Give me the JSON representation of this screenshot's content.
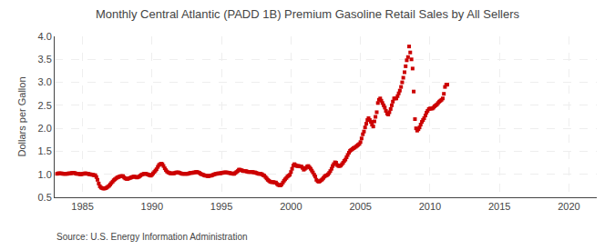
{
  "chart_data": {
    "type": "scatter",
    "title": "Monthly Central Atlantic (PADD 1B) Premium Gasoline Retail Sales by All Sellers",
    "ylabel": "Dollars per Gallon",
    "source": "Source: U.S. Energy Information Administration",
    "color": "#cc0000",
    "marker": "square",
    "grid": true,
    "xlim": [
      1983,
      2022
    ],
    "ylim": [
      0.5,
      4.0
    ],
    "xticks": [
      1985,
      1990,
      1995,
      2000,
      2005,
      2010,
      2015,
      2020
    ],
    "yticks": [
      0.5,
      {
        "value": 1.0,
        "label": "1.0"
      },
      1.5,
      {
        "value": 2.0,
        "label": "2.0"
      },
      2.5,
      {
        "value": 3.0,
        "label": "3.0"
      },
      3.5,
      {
        "value": 4.0,
        "label": "4.0"
      }
    ],
    "x": [
      1983.17,
      1983.25,
      1983.33,
      1983.42,
      1983.5,
      1983.58,
      1983.67,
      1983.75,
      1983.83,
      1983.92,
      1984.0,
      1984.08,
      1984.17,
      1984.25,
      1984.33,
      1984.42,
      1984.5,
      1984.58,
      1984.67,
      1984.75,
      1984.83,
      1984.92,
      1985.0,
      1985.08,
      1985.17,
      1985.25,
      1985.33,
      1985.42,
      1985.5,
      1985.58,
      1985.67,
      1985.75,
      1985.83,
      1985.92,
      1986.0,
      1986.08,
      1986.17,
      1986.25,
      1986.33,
      1986.42,
      1986.5,
      1986.58,
      1986.67,
      1986.75,
      1986.83,
      1986.92,
      1987.0,
      1987.08,
      1987.17,
      1987.25,
      1987.33,
      1987.42,
      1987.5,
      1987.58,
      1987.67,
      1987.75,
      1987.83,
      1987.92,
      1988.0,
      1988.08,
      1988.17,
      1988.25,
      1988.33,
      1988.42,
      1988.5,
      1988.58,
      1988.67,
      1988.75,
      1988.83,
      1988.92,
      1989.0,
      1989.08,
      1989.17,
      1989.25,
      1989.33,
      1989.42,
      1989.5,
      1989.58,
      1989.67,
      1989.75,
      1989.83,
      1989.92,
      1990.0,
      1990.08,
      1990.17,
      1990.25,
      1990.33,
      1990.42,
      1990.5,
      1990.58,
      1990.67,
      1990.75,
      1990.83,
      1990.92,
      1991.0,
      1991.08,
      1991.17,
      1991.25,
      1991.33,
      1991.42,
      1991.5,
      1991.58,
      1991.67,
      1991.75,
      1991.83,
      1991.92,
      1992.0,
      1992.08,
      1992.17,
      1992.25,
      1992.33,
      1992.42,
      1992.5,
      1992.58,
      1992.67,
      1992.75,
      1992.83,
      1992.92,
      1993.0,
      1993.08,
      1993.17,
      1993.25,
      1993.33,
      1993.42,
      1993.5,
      1993.58,
      1993.67,
      1993.75,
      1993.83,
      1993.92,
      1994.0,
      1994.08,
      1994.17,
      1994.25,
      1994.33,
      1994.42,
      1994.5,
      1994.58,
      1994.67,
      1994.75,
      1994.83,
      1994.92,
      1995.0,
      1995.08,
      1995.17,
      1995.25,
      1995.33,
      1995.42,
      1995.5,
      1995.58,
      1995.67,
      1995.75,
      1995.83,
      1995.92,
      1996.0,
      1996.08,
      1996.17,
      1996.25,
      1996.33,
      1996.42,
      1996.5,
      1996.58,
      1996.67,
      1996.75,
      1996.83,
      1996.92,
      1997.0,
      1997.08,
      1997.17,
      1997.25,
      1997.33,
      1997.42,
      1997.5,
      1997.58,
      1997.67,
      1997.75,
      1997.83,
      1997.92,
      1998.0,
      1998.08,
      1998.17,
      1998.25,
      1998.33,
      1998.42,
      1998.5,
      1998.58,
      1998.67,
      1998.75,
      1998.83,
      1998.92,
      1999.0,
      1999.08,
      1999.17,
      1999.25,
      1999.33,
      1999.42,
      1999.5,
      1999.58,
      1999.67,
      1999.75,
      1999.83,
      1999.92,
      2000.0,
      2000.08,
      2000.17,
      2000.25,
      2000.33,
      2000.42,
      2000.5,
      2000.58,
      2000.67,
      2000.75,
      2000.83,
      2000.92,
      2001.0,
      2001.08,
      2001.17,
      2001.25,
      2001.33,
      2001.42,
      2001.5,
      2001.58,
      2001.67,
      2001.75,
      2001.83,
      2001.92,
      2002.0,
      2002.08,
      2002.17,
      2002.25,
      2002.33,
      2002.42,
      2002.5,
      2002.58,
      2002.67,
      2002.75,
      2002.83,
      2002.92,
      2003.0,
      2003.08,
      2003.17,
      2003.25,
      2003.33,
      2003.42,
      2003.5,
      2003.58,
      2003.67,
      2003.75,
      2003.83,
      2003.92,
      2004.0,
      2004.08,
      2004.17,
      2004.25,
      2004.33,
      2004.42,
      2004.5,
      2004.58,
      2004.67,
      2004.75,
      2004.83,
      2004.92,
      2005.0,
      2005.08,
      2005.17,
      2005.25,
      2005.33,
      2005.42,
      2005.5,
      2005.58,
      2005.67,
      2005.75,
      2005.83,
      2005.92,
      2006.0,
      2006.08,
      2006.17,
      2006.25,
      2006.33,
      2006.42,
      2006.5,
      2006.58,
      2006.67,
      2006.75,
      2006.83,
      2006.92,
      2007.0,
      2007.08,
      2007.17,
      2007.25,
      2007.33,
      2007.42,
      2007.5,
      2007.58,
      2007.67,
      2007.75,
      2007.83,
      2007.92,
      2008.0,
      2008.08,
      2008.17,
      2008.25,
      2008.33,
      2008.42,
      2008.5,
      2008.58,
      2008.67,
      2008.75,
      2008.83,
      2008.92,
      2009.0,
      2009.08,
      2009.17,
      2009.25,
      2009.33,
      2009.42,
      2009.5,
      2009.58,
      2009.67,
      2009.75,
      2009.83,
      2009.92,
      2010.0,
      2010.08,
      2010.17,
      2010.25,
      2010.33,
      2010.42,
      2010.5,
      2010.58,
      2010.67,
      2010.75,
      2010.83,
      2010.92,
      2011.0,
      2011.08,
      2011.17,
      2011.25
    ],
    "values": [
      1.01,
      1.02,
      1.02,
      1.02,
      1.02,
      1.01,
      1.01,
      1.01,
      1.01,
      1.01,
      1.02,
      1.02,
      1.02,
      1.03,
      1.03,
      1.03,
      1.02,
      1.01,
      1.01,
      1.01,
      1.0,
      1.0,
      1.01,
      1.01,
      1.02,
      1.02,
      1.01,
      1.01,
      1.0,
      1.0,
      0.99,
      0.99,
      0.98,
      0.98,
      0.94,
      0.88,
      0.8,
      0.74,
      0.71,
      0.7,
      0.69,
      0.69,
      0.7,
      0.71,
      0.73,
      0.75,
      0.78,
      0.81,
      0.84,
      0.87,
      0.89,
      0.91,
      0.93,
      0.94,
      0.95,
      0.96,
      0.96,
      0.96,
      0.93,
      0.91,
      0.9,
      0.9,
      0.91,
      0.92,
      0.93,
      0.94,
      0.95,
      0.95,
      0.94,
      0.93,
      0.94,
      0.95,
      0.97,
      0.99,
      1.0,
      1.01,
      1.01,
      1.01,
      1.0,
      0.99,
      0.98,
      0.97,
      0.99,
      1.02,
      1.05,
      1.08,
      1.11,
      1.16,
      1.2,
      1.22,
      1.23,
      1.22,
      1.18,
      1.13,
      1.09,
      1.06,
      1.04,
      1.03,
      1.02,
      1.02,
      1.02,
      1.02,
      1.03,
      1.04,
      1.04,
      1.04,
      1.03,
      1.02,
      1.01,
      1.01,
      1.01,
      1.01,
      1.01,
      1.01,
      1.02,
      1.03,
      1.03,
      1.03,
      1.04,
      1.04,
      1.05,
      1.05,
      1.04,
      1.03,
      1.01,
      1.0,
      0.99,
      0.98,
      0.97,
      0.97,
      0.96,
      0.96,
      0.97,
      0.97,
      0.98,
      0.99,
      1.0,
      1.01,
      1.01,
      1.02,
      1.02,
      1.02,
      1.03,
      1.03,
      1.04,
      1.04,
      1.04,
      1.04,
      1.03,
      1.03,
      1.02,
      1.02,
      1.01,
      1.01,
      1.03,
      1.05,
      1.07,
      1.1,
      1.1,
      1.09,
      1.08,
      1.07,
      1.07,
      1.07,
      1.06,
      1.05,
      1.05,
      1.05,
      1.05,
      1.05,
      1.04,
      1.04,
      1.03,
      1.02,
      1.01,
      1.01,
      1.01,
      1.0,
      0.98,
      0.97,
      0.94,
      0.91,
      0.88,
      0.86,
      0.84,
      0.83,
      0.83,
      0.83,
      0.82,
      0.82,
      0.79,
      0.77,
      0.76,
      0.76,
      0.78,
      0.82,
      0.86,
      0.89,
      0.92,
      0.95,
      0.97,
      0.99,
      1.05,
      1.12,
      1.19,
      1.22,
      1.2,
      1.18,
      1.18,
      1.18,
      1.17,
      1.17,
      1.14,
      1.1,
      1.12,
      1.14,
      1.17,
      1.18,
      1.15,
      1.12,
      1.08,
      1.04,
      0.99,
      0.95,
      0.88,
      0.85,
      0.84,
      0.85,
      0.87,
      0.89,
      0.92,
      0.95,
      0.97,
      0.98,
      1.0,
      1.03,
      1.07,
      1.12,
      1.18,
      1.22,
      1.26,
      1.25,
      1.2,
      1.18,
      1.18,
      1.19,
      1.22,
      1.25,
      1.29,
      1.32,
      1.37,
      1.42,
      1.47,
      1.51,
      1.53,
      1.55,
      1.57,
      1.58,
      1.6,
      1.62,
      1.64,
      1.66,
      1.7,
      1.78,
      1.87,
      1.93,
      2.02,
      2.1,
      2.18,
      2.22,
      2.18,
      2.14,
      2.08,
      2.04,
      2.15,
      2.25,
      2.35,
      2.55,
      2.62,
      2.65,
      2.6,
      2.55,
      2.5,
      2.45,
      2.38,
      2.32,
      2.3,
      2.35,
      2.42,
      2.5,
      2.58,
      2.65,
      2.65,
      2.65,
      2.7,
      2.76,
      2.82,
      2.9,
      3.0,
      3.1,
      3.22,
      3.35,
      3.48,
      3.55,
      3.78,
      3.65,
      3.5,
      3.3,
      2.8,
      2.2,
      2.0,
      1.95,
      1.98,
      2.02,
      2.08,
      2.14,
      2.18,
      2.22,
      2.28,
      2.34,
      2.38,
      2.42,
      2.43,
      2.43,
      2.43,
      2.45,
      2.48,
      2.5,
      2.52,
      2.55,
      2.58,
      2.6,
      2.62,
      2.65,
      2.75,
      2.9,
      2.95,
      2.95
    ]
  }
}
